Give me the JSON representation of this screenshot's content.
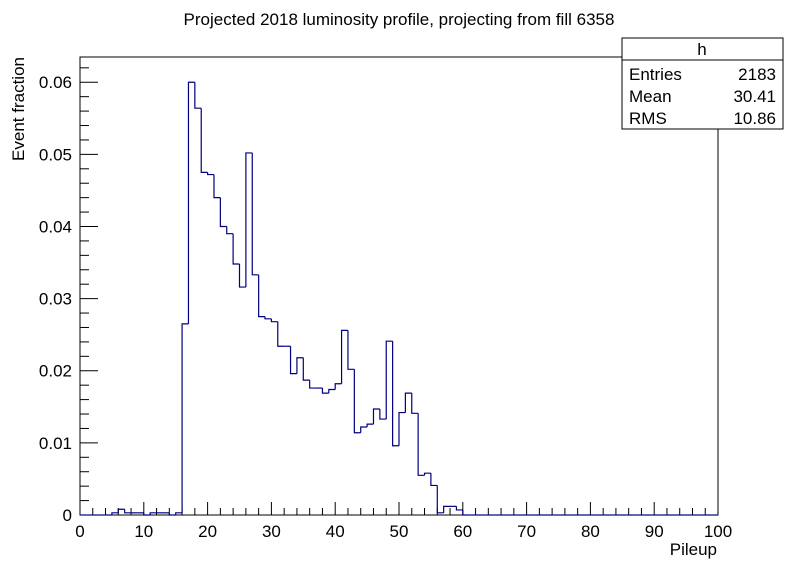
{
  "chart_data": {
    "type": "histogram",
    "title": "Projected 2018 luminosity profile, projecting from fill 6358",
    "xlabel": "Pileup",
    "ylabel": "Event fraction",
    "xlim": [
      0,
      100
    ],
    "ylim": [
      0,
      0.0635
    ],
    "bin_width": 1,
    "x_ticks": [
      0,
      10,
      20,
      30,
      40,
      50,
      60,
      70,
      80,
      90,
      100
    ],
    "y_ticks": [
      0,
      0.01,
      0.02,
      0.03,
      0.04,
      0.05,
      0.06
    ],
    "y_tick_labels": [
      "0",
      "0.01",
      "0.02",
      "0.03",
      "0.04",
      "0.05",
      "0.06"
    ],
    "line_color": "#000080",
    "grid": false,
    "stats_box": {
      "name": "h",
      "rows": [
        {
          "label": "Entries",
          "value": "2183"
        },
        {
          "label": "Mean",
          "value": "30.41"
        },
        {
          "label": "RMS",
          "value": "10.86"
        }
      ]
    },
    "series": [
      {
        "bin_edges_start": 0,
        "values": [
          0,
          0,
          0,
          0,
          0,
          0.0003,
          0.0008,
          0.0003,
          0.0003,
          0.0003,
          0,
          0.0003,
          0.0003,
          0.0003,
          0,
          0.0003,
          0.0265,
          0.06,
          0.0564,
          0.0475,
          0.0472,
          0.044,
          0.04,
          0.039,
          0.0348,
          0.0316,
          0.0502,
          0.0333,
          0.0275,
          0.0272,
          0.0268,
          0.0234,
          0.0234,
          0.0196,
          0.0218,
          0.0187,
          0.0176,
          0.0176,
          0.0169,
          0.0174,
          0.0182,
          0.0256,
          0.0202,
          0.0114,
          0.0122,
          0.0126,
          0.0147,
          0.0133,
          0.0241,
          0.0096,
          0.0142,
          0.0169,
          0.0141,
          0.0055,
          0.0058,
          0.0041,
          0.0003,
          0.0012,
          0.0012,
          0.0007,
          0,
          0,
          0,
          0,
          0,
          0,
          0,
          0,
          0,
          0,
          0,
          0,
          0,
          0,
          0,
          0,
          0,
          0,
          0,
          0,
          0,
          0,
          0,
          0,
          0,
          0,
          0,
          0,
          0,
          0,
          0,
          0,
          0,
          0,
          0,
          0,
          0,
          0,
          0,
          0
        ]
      }
    ]
  }
}
